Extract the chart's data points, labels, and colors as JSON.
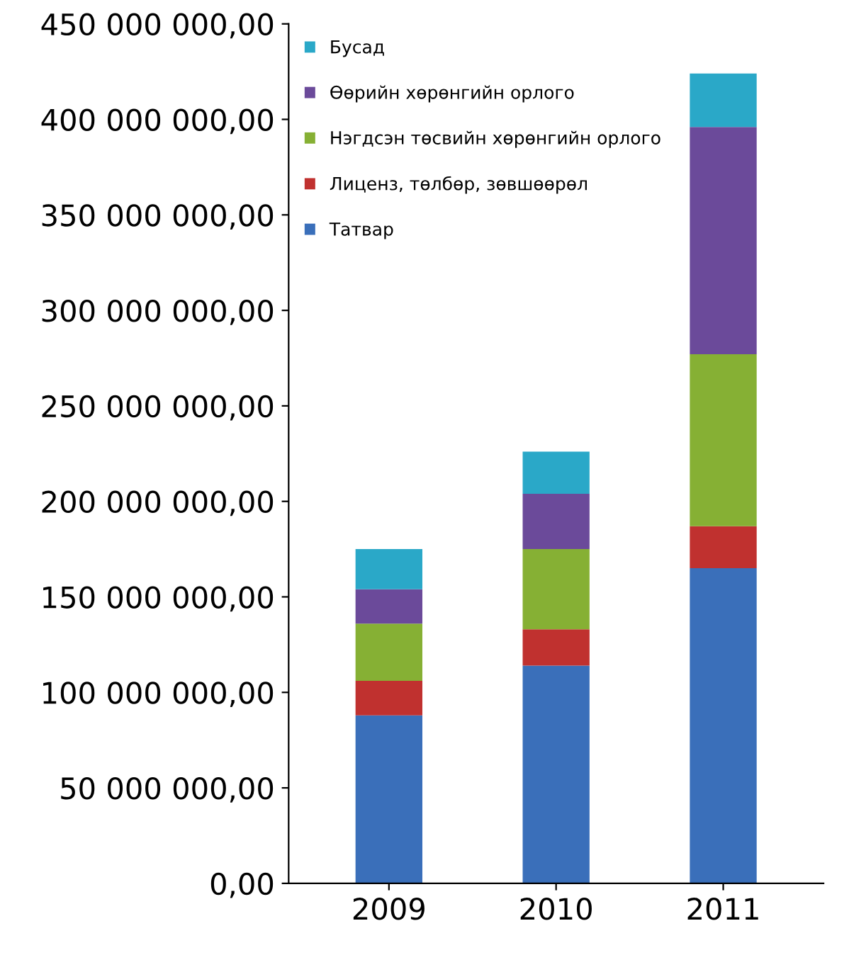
{
  "chart_data": {
    "type": "bar",
    "stacked": true,
    "categories": [
      "2009",
      "2010",
      "2011"
    ],
    "series": [
      {
        "name": "Татвар",
        "color": "#3a6fba",
        "values": [
          88000000,
          114000000,
          165000000
        ]
      },
      {
        "name": "Лиценз, төлбөр, зөвшөөрөл",
        "color": "#c0312f",
        "values": [
          18000000,
          19000000,
          22000000
        ]
      },
      {
        "name": "Нэгдсэн төсвийн хөрөнгийн орлого",
        "color": "#86b034",
        "values": [
          30000000,
          42000000,
          90000000
        ]
      },
      {
        "name": "Өөрийн хөрөнгийн орлого",
        "color": "#6b4a9a",
        "values": [
          18000000,
          29000000,
          119000000
        ]
      },
      {
        "name": "Бусад",
        "color": "#2aa8c8",
        "values": [
          21000000,
          22000000,
          28000000
        ]
      }
    ],
    "ylim": [
      0,
      450000000
    ],
    "yticks": [
      {
        "value": 0,
        "label": "0,00"
      },
      {
        "value": 50000000,
        "label": "50 000 000,00"
      },
      {
        "value": 100000000,
        "label": "100 000 000,00"
      },
      {
        "value": 150000000,
        "label": "150 000 000,00"
      },
      {
        "value": 200000000,
        "label": "200 000 000,00"
      },
      {
        "value": 250000000,
        "label": "250 000 000,00"
      },
      {
        "value": 300000000,
        "label": "300 000 000,00"
      },
      {
        "value": 350000000,
        "label": "350 000 000,00"
      },
      {
        "value": 400000000,
        "label": "400 000 000,00"
      },
      {
        "value": 450000000,
        "label": "450 000 000,00"
      }
    ],
    "grid": false,
    "legend": "top left"
  }
}
